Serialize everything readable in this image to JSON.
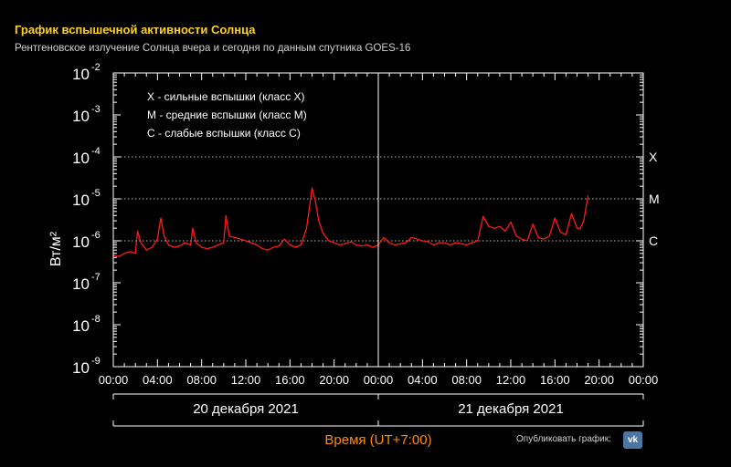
{
  "page": {
    "title": "График вспышечной активности Солнца",
    "subtitle": "Рентгеновское излучение Солнца вчера и сегодня по данным спутника GOES-16",
    "share_label": "Опубликовать график:",
    "share_icon": "vk-icon"
  },
  "chart_data": {
    "type": "line",
    "scale_y": "log",
    "ylim_exp": [
      -9,
      -2
    ],
    "ylabel": "Вт/м²",
    "xlabel": "Время (UT+7:00)",
    "y_ticks": [
      {
        "base": "10",
        "exp": "-2"
      },
      {
        "base": "10",
        "exp": "-3"
      },
      {
        "base": "10",
        "exp": "-4"
      },
      {
        "base": "10",
        "exp": "-5"
      },
      {
        "base": "10",
        "exp": "-6"
      },
      {
        "base": "10",
        "exp": "-7"
      },
      {
        "base": "10",
        "exp": "-8"
      },
      {
        "base": "10",
        "exp": "-9"
      }
    ],
    "x_ticks": [
      "00:00",
      "04:00",
      "08:00",
      "12:00",
      "16:00",
      "20:00",
      "00:00",
      "04:00",
      "08:00",
      "12:00",
      "16:00",
      "20:00",
      "00:00"
    ],
    "x_hours_range": [
      0,
      48
    ],
    "days": [
      "20 декабря 2021",
      "21 декабря 2021"
    ],
    "legend": [
      "X - сильные вспышки (класс X)",
      "M - средние вспышки (класс M)",
      "C - слабые вспышки (класс C)"
    ],
    "class_lines": [
      {
        "label": "X",
        "value_exp": -4
      },
      {
        "label": "M",
        "value_exp": -5
      },
      {
        "label": "C",
        "value_exp": -6
      }
    ],
    "colors": {
      "series": "#ff1a1a",
      "axis": "#ffffff",
      "xlabel": "#ff8c00",
      "grid": "#bbbbbb"
    },
    "series": [
      {
        "x_hours": [
          0,
          0.5,
          1,
          1.5,
          2,
          2.2,
          2.5,
          3,
          3.5,
          4,
          4.3,
          4.6,
          5,
          5.5,
          6,
          6.5,
          7,
          7.2,
          7.5,
          8,
          8.5,
          9,
          9.5,
          10,
          10.2,
          10.5,
          11,
          11.5,
          12,
          12.5,
          13,
          13.5,
          14,
          14.5,
          15,
          15.5,
          16,
          16.5,
          17,
          17.5,
          18,
          18.3,
          18.6,
          19,
          19.5,
          20,
          20.5,
          21,
          21.5,
          22,
          22.5,
          23,
          23.5,
          24,
          24.5,
          25,
          25.5,
          26,
          26.5,
          27,
          27.5,
          28,
          28.5,
          29,
          29.5,
          30,
          30.5,
          31,
          31.5,
          32,
          32.5,
          33,
          33.5,
          34,
          34.5,
          35,
          35.5,
          36,
          36.5,
          37,
          37.5,
          38,
          38.5,
          39,
          39.5,
          40,
          40.5,
          41,
          41.5,
          42,
          42.3,
          42.6,
          43
        ],
        "y": [
          4.5e-07,
          4.2e-07,
          5e-07,
          5.5e-07,
          5e-07,
          1.7e-06,
          9e-07,
          6e-07,
          7e-07,
          1.1e-06,
          3.5e-06,
          1.3e-06,
          8e-07,
          7e-07,
          7.5e-07,
          9e-07,
          8e-07,
          2e-06,
          9e-07,
          7e-07,
          6.5e-07,
          7e-07,
          8e-07,
          9e-07,
          4e-06,
          1.3e-06,
          1.2e-06,
          1.1e-06,
          1e-06,
          9e-07,
          8e-07,
          6.5e-07,
          6e-07,
          7e-07,
          7.5e-07,
          1.1e-06,
          8e-07,
          7e-07,
          8e-07,
          2e-06,
          1.8e-05,
          9e-06,
          3e-06,
          1.5e-06,
          1e-06,
          9e-07,
          8e-07,
          8.5e-07,
          9.5e-07,
          8e-07,
          7.5e-07,
          8e-07,
          7e-07,
          8e-07,
          1.2e-06,
          9e-07,
          8e-07,
          8.5e-07,
          9e-07,
          1.2e-06,
          1.1e-06,
          1e-06,
          9.5e-07,
          8e-07,
          9e-07,
          9e-07,
          8e-07,
          9e-07,
          8.5e-07,
          8e-07,
          9e-07,
          1e-06,
          3.8e-06,
          2.2e-06,
          2e-06,
          2.2e-06,
          1.7e-06,
          2.8e-06,
          1.3e-06,
          1.1e-06,
          1e-06,
          2.5e-06,
          1.2e-06,
          1.1e-06,
          1.3e-06,
          3.5e-06,
          1.6e-06,
          1.4e-06,
          4.5e-06,
          2e-06,
          2e-06,
          3e-06,
          1.2e-05
        ]
      }
    ]
  }
}
